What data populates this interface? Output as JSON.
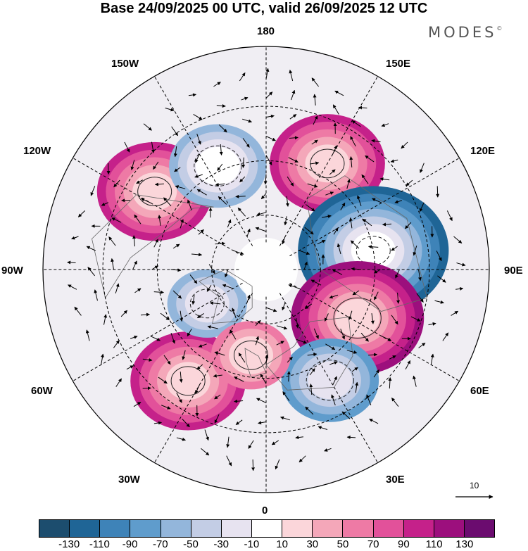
{
  "title": "Base 24/09/2025 00 UTC, valid 26/09/2025 12 UTC",
  "brand": "MODES",
  "brand_mark": "©",
  "longitude_labels": {
    "lon_180": "180",
    "lon_150e": "150E",
    "lon_120e": "120E",
    "lon_90e": "90E",
    "lon_60e": "60E",
    "lon_30e": "30E",
    "lon_0": "0",
    "lon_30w": "30W",
    "lon_60w": "60W",
    "lon_90w": "90W",
    "lon_120w": "120W",
    "lon_150w": "150W"
  },
  "vector_reference": {
    "label": "10",
    "magnitude": 10
  },
  "colorbar": {
    "colors": [
      "#1c4d6e",
      "#1f6596",
      "#3e83b8",
      "#5f9ccc",
      "#93b6db",
      "#c3cde5",
      "#e7e3f0",
      "#ffffff",
      "#fbd6da",
      "#f4a7b9",
      "#ee7aa5",
      "#e2519a",
      "#c5218a",
      "#9c0f7d",
      "#6b0c6f"
    ],
    "ticks": [
      "-130",
      "-110",
      "-90",
      "-70",
      "-50",
      "-30",
      "-10",
      "10",
      "30",
      "50",
      "70",
      "90",
      "110",
      "130"
    ]
  },
  "anomaly_centers": [
    {
      "name": "positive-center-150e",
      "lon": 150,
      "lat": 45,
      "value": 95
    },
    {
      "name": "negative-center-100e",
      "lon": 100,
      "lat": 50,
      "value": -125
    },
    {
      "name": "positive-center-60e",
      "lon": 62,
      "lat": 52,
      "value": 120
    },
    {
      "name": "negative-center-30e",
      "lon": 30,
      "lat": 43,
      "value": -80
    },
    {
      "name": "positive-center-30w",
      "lon": -35,
      "lat": 40,
      "value": 90
    },
    {
      "name": "positive-center-120w",
      "lon": -125,
      "lat": 40,
      "value": 100
    },
    {
      "name": "negative-center-150w",
      "lon": -155,
      "lat": 48,
      "value": -65
    },
    {
      "name": "negative-center-60w",
      "lon": -60,
      "lat": 65,
      "value": -55
    },
    {
      "name": "positive-center-10w",
      "lon": -10,
      "lat": 58,
      "value": 60
    }
  ]
}
